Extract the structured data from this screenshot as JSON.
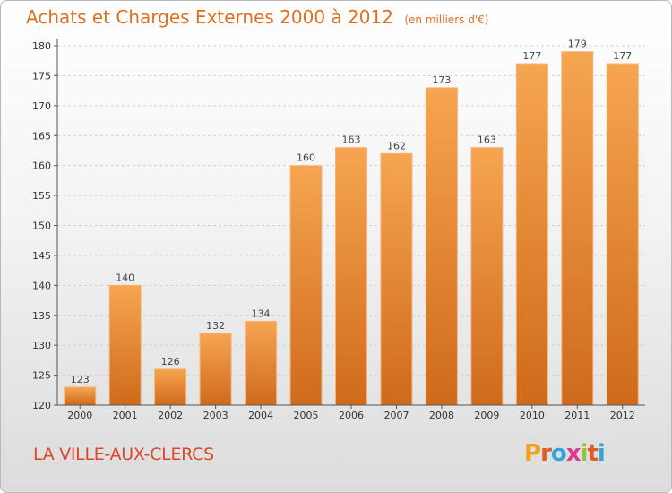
{
  "header": {
    "title": "Achats et Charges Externes 2000 à 2012",
    "unit": "(en milliers d'€)"
  },
  "footer": {
    "commune": "LA VILLE-AUX-CLERCS",
    "logo_letters": [
      "P",
      "r",
      "o",
      "x",
      "i",
      "t",
      "i"
    ],
    "logo_colors": [
      "#f0a21e",
      "#e05a2a",
      "#36a4dc",
      "#e03a8c",
      "#8cc63f",
      "#e05a2a",
      "#36a4dc"
    ]
  },
  "colors": {
    "bar": "#f29a42",
    "bar_dark": "#cf6a1c",
    "text": "#e0701e"
  },
  "chart_data": {
    "type": "bar",
    "title": "Achats et Charges Externes 2000 à 2012",
    "subtitle": "(en milliers d'€)",
    "categories": [
      "2000",
      "2001",
      "2002",
      "2003",
      "2004",
      "2005",
      "2006",
      "2007",
      "2008",
      "2009",
      "2010",
      "2011",
      "2012"
    ],
    "values": [
      123,
      140,
      126,
      132,
      134,
      160,
      163,
      162,
      173,
      163,
      177,
      179,
      177
    ],
    "ylim": [
      120,
      180
    ],
    "yticks": [
      120,
      125,
      130,
      135,
      140,
      145,
      150,
      155,
      160,
      165,
      170,
      175,
      180
    ],
    "grid": true
  }
}
